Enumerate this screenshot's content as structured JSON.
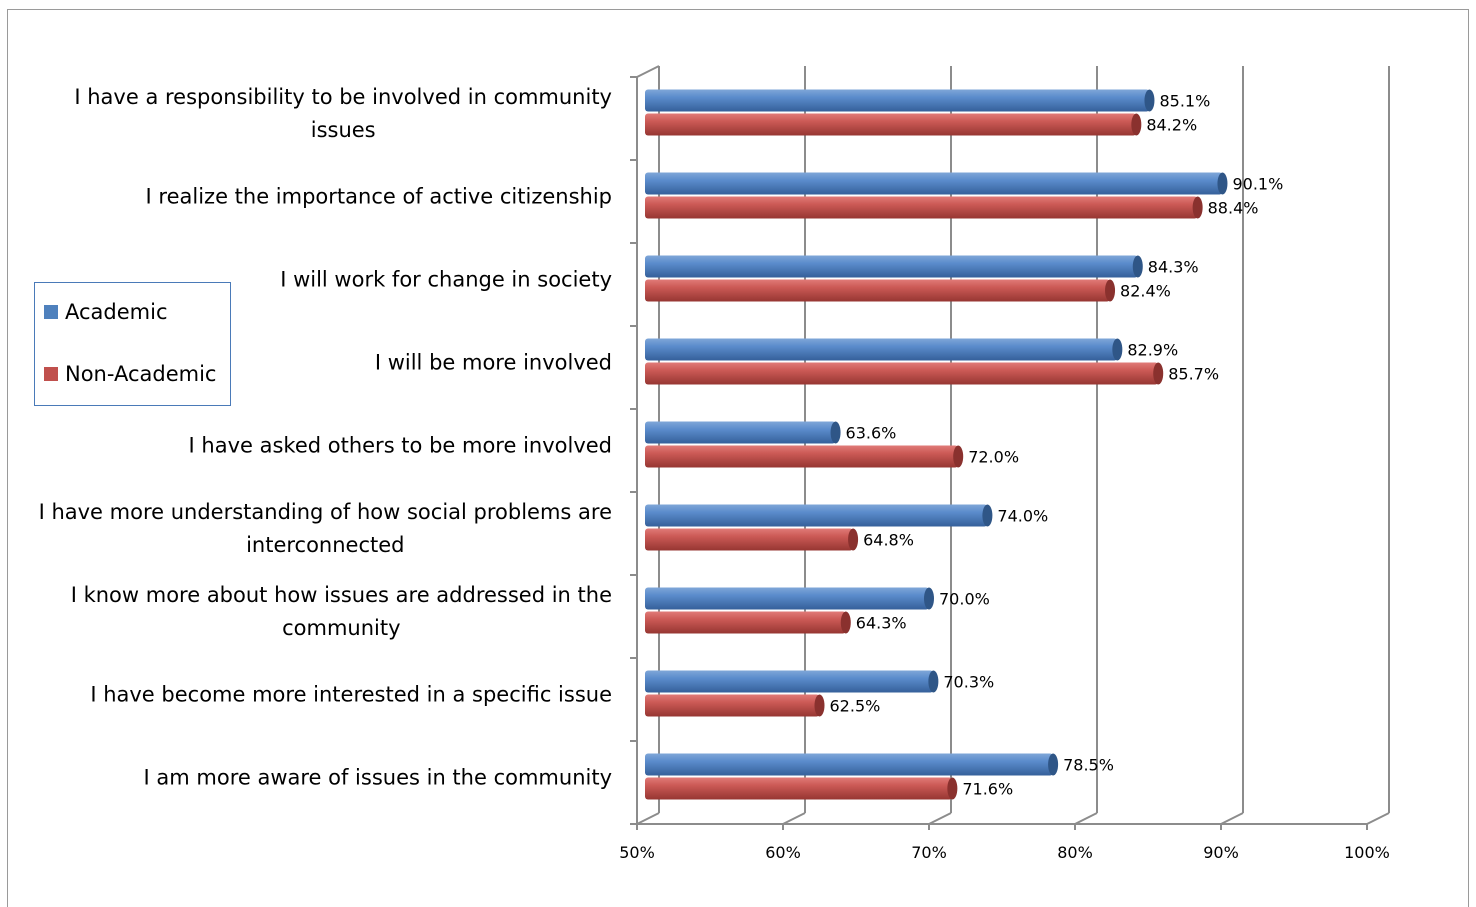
{
  "chart_data": {
    "type": "bar",
    "orientation": "horizontal",
    "categories": [
      "I have a responsibility to be involved in community issues",
      "I realize the importance of active citizenship",
      "I will work for change in society",
      "I will be more involved",
      "I have asked others to be more involved",
      "I have more understanding of how social problems are interconnected",
      "I know more about how issues are addressed in the community",
      "I have become more interested in a specific issue",
      "I am more aware of issues in the community"
    ],
    "category_lines": [
      [
        "I have a responsibility to be involved in community",
        "issues"
      ],
      [
        "I realize the importance of active citizenship"
      ],
      [
        "I will work for change in society"
      ],
      [
        "I will be more involved"
      ],
      [
        "I have asked others to be more involved"
      ],
      [
        "I have more understanding of how social problems are",
        "interconnected"
      ],
      [
        "I know more about how issues are addressed in the",
        "community"
      ],
      [
        "I have become more interested in a specific issue"
      ],
      [
        "I am more aware of issues in the community"
      ]
    ],
    "series": [
      {
        "name": "Academic",
        "color": "#4f81bd",
        "values": [
          85.1,
          90.1,
          84.3,
          82.9,
          63.6,
          74.0,
          70.0,
          70.3,
          78.5
        ],
        "labels": [
          "85.1%",
          "90.1%",
          "84.3%",
          "82.9%",
          "63.6%",
          "74.0%",
          "70.0%",
          "70.3%",
          "78.5%"
        ]
      },
      {
        "name": "Non-Academic",
        "color": "#c0504d",
        "values": [
          84.2,
          88.4,
          82.4,
          85.7,
          72.0,
          64.8,
          64.3,
          62.5,
          71.6
        ],
        "labels": [
          "84.2%",
          "88.4%",
          "82.4%",
          "85.7%",
          "72.0%",
          "64.8%",
          "64.3%",
          "62.5%",
          "71.6%"
        ]
      }
    ],
    "xlim": [
      50,
      100
    ],
    "xticks": [
      50,
      60,
      70,
      80,
      90,
      100
    ],
    "xtick_labels": [
      "50%",
      "60%",
      "70%",
      "80%",
      "90%",
      "100%"
    ],
    "grid": true,
    "legend_position": "left",
    "title": "",
    "xlabel": "",
    "ylabel": ""
  }
}
